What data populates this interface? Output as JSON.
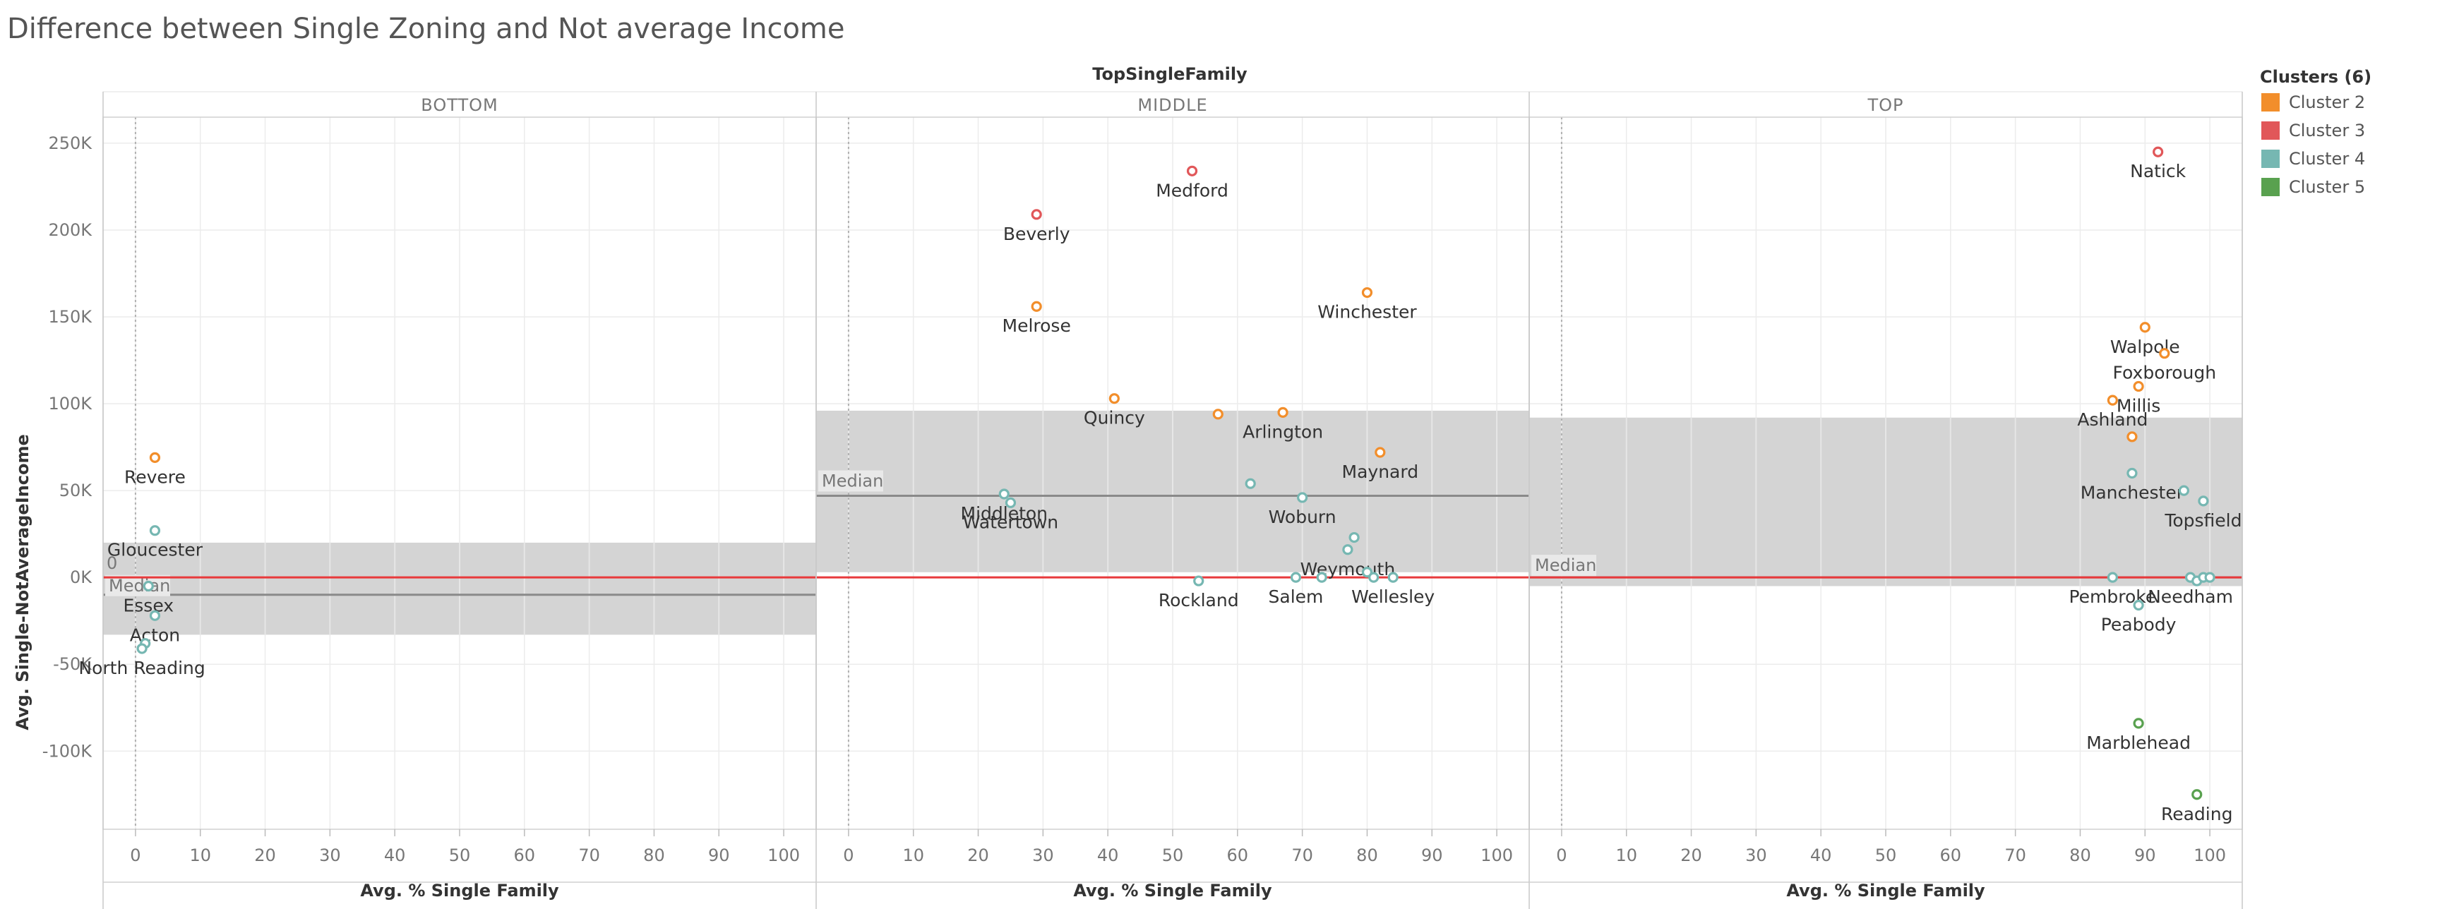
{
  "chart_data": {
    "type": "scatter",
    "title": "Difference between Single Zoning and Not average Income",
    "column_header": "TopSingleFamily",
    "xlabel": "Avg. % Single Family",
    "ylabel": "Avg. Single-NotAverageIncome",
    "xlim": [
      -5,
      105
    ],
    "ylim": [
      -145000,
      265000
    ],
    "x_ticks": [
      0,
      10,
      20,
      30,
      40,
      50,
      60,
      70,
      80,
      90,
      100
    ],
    "y_ticks": [
      250000,
      200000,
      150000,
      100000,
      50000,
      0,
      -50000,
      -100000
    ],
    "y_tick_labels": [
      "250K",
      "200K",
      "150K",
      "100K",
      "50K",
      "0K",
      "-50K",
      "-100K"
    ],
    "grid": true,
    "legend": {
      "title": "Clusters (6)",
      "position": "right",
      "items": [
        {
          "name": "Cluster 2",
          "color": "#F28E2B"
        },
        {
          "name": "Cluster 3",
          "color": "#E15759"
        },
        {
          "name": "Cluster 4",
          "color": "#76B7B2"
        },
        {
          "name": "Cluster 5",
          "color": "#59A14F"
        }
      ]
    },
    "reference_line_color": "#E8393B",
    "panels": [
      {
        "name": "BOTTOM",
        "median": -10000,
        "median_label": "Median",
        "band": [
          -33000,
          20000
        ],
        "zero_label": "0",
        "points": [
          {
            "label": "Revere",
            "x": 3,
            "y": 69000,
            "cluster": "Cluster 2"
          },
          {
            "label": "Gloucester",
            "x": 3,
            "y": 27000,
            "cluster": "Cluster 4"
          },
          {
            "label": "Essex",
            "x": 2,
            "y": -5000,
            "cluster": "Cluster 4"
          },
          {
            "label": "Acton",
            "x": 3,
            "y": -22000,
            "cluster": "Cluster 4"
          },
          {
            "label": "",
            "x": 1.5,
            "y": -38000,
            "cluster": "Cluster 4"
          },
          {
            "label": "North Reading",
            "x": 1,
            "y": -41000,
            "cluster": "Cluster 4"
          }
        ]
      },
      {
        "name": "MIDDLE",
        "median": 47000,
        "median_label": "Median",
        "band": [
          3000,
          96000
        ],
        "points": [
          {
            "label": "Medford",
            "x": 53,
            "y": 234000,
            "cluster": "Cluster 3"
          },
          {
            "label": "Beverly",
            "x": 29,
            "y": 209000,
            "cluster": "Cluster 3"
          },
          {
            "label": "Melrose",
            "x": 29,
            "y": 156000,
            "cluster": "Cluster 2"
          },
          {
            "label": "Winchester",
            "x": 80,
            "y": 164000,
            "cluster": "Cluster 2"
          },
          {
            "label": "Quincy",
            "x": 41,
            "y": 103000,
            "cluster": "Cluster 2"
          },
          {
            "label": "",
            "x": 57,
            "y": 94000,
            "cluster": "Cluster 2"
          },
          {
            "label": "Arlington",
            "x": 67,
            "y": 95000,
            "cluster": "Cluster 2"
          },
          {
            "label": "Maynard",
            "x": 82,
            "y": 72000,
            "cluster": "Cluster 2"
          },
          {
            "label": "Middleton",
            "x": 24,
            "y": 48000,
            "cluster": "Cluster 4"
          },
          {
            "label": "Watertown",
            "x": 25,
            "y": 43000,
            "cluster": "Cluster 4"
          },
          {
            "label": "",
            "x": 62,
            "y": 54000,
            "cluster": "Cluster 4"
          },
          {
            "label": "Woburn",
            "x": 70,
            "y": 46000,
            "cluster": "Cluster 4"
          },
          {
            "label": "",
            "x": 78,
            "y": 23000,
            "cluster": "Cluster 4"
          },
          {
            "label": "Weymouth",
            "x": 77,
            "y": 16000,
            "cluster": "Cluster 4"
          },
          {
            "label": "Rockland",
            "x": 54,
            "y": -2000,
            "cluster": "Cluster 4"
          },
          {
            "label": "Salem",
            "x": 69,
            "y": 0,
            "cluster": "Cluster 4"
          },
          {
            "label": "",
            "x": 73,
            "y": 0,
            "cluster": "Cluster 4"
          },
          {
            "label": "",
            "x": 80,
            "y": 3000,
            "cluster": "Cluster 4"
          },
          {
            "label": "",
            "x": 81,
            "y": 0,
            "cluster": "Cluster 4"
          },
          {
            "label": "Wellesley",
            "x": 84,
            "y": 0,
            "cluster": "Cluster 4"
          }
        ]
      },
      {
        "name": "TOP",
        "median": 0,
        "median_label": "Median",
        "band": [
          -5000,
          92000
        ],
        "points": [
          {
            "label": "Natick",
            "x": 92,
            "y": 245000,
            "cluster": "Cluster 3"
          },
          {
            "label": "Walpole",
            "x": 90,
            "y": 144000,
            "cluster": "Cluster 2"
          },
          {
            "label": "Foxborough",
            "x": 93,
            "y": 129000,
            "cluster": "Cluster 2"
          },
          {
            "label": "Millis",
            "x": 89,
            "y": 110000,
            "cluster": "Cluster 2"
          },
          {
            "label": "Ashland",
            "x": 85,
            "y": 102000,
            "cluster": "Cluster 2"
          },
          {
            "label": "",
            "x": 88,
            "y": 81000,
            "cluster": "Cluster 2"
          },
          {
            "label": "Manchester",
            "x": 88,
            "y": 60000,
            "cluster": "Cluster 4"
          },
          {
            "label": "",
            "x": 96,
            "y": 50000,
            "cluster": "Cluster 4"
          },
          {
            "label": "Topsfield",
            "x": 99,
            "y": 44000,
            "cluster": "Cluster 4"
          },
          {
            "label": "Pembroke",
            "x": 85,
            "y": 0,
            "cluster": "Cluster 4"
          },
          {
            "label": "Needham",
            "x": 97,
            "y": 0,
            "cluster": "Cluster 4"
          },
          {
            "label": "",
            "x": 98,
            "y": -2000,
            "cluster": "Cluster 4"
          },
          {
            "label": "",
            "x": 99,
            "y": 0,
            "cluster": "Cluster 4"
          },
          {
            "label": "",
            "x": 100,
            "y": 0,
            "cluster": "Cluster 4"
          },
          {
            "label": "Peabody",
            "x": 89,
            "y": -16000,
            "cluster": "Cluster 4"
          },
          {
            "label": "Marblehead",
            "x": 89,
            "y": -84000,
            "cluster": "Cluster 5"
          },
          {
            "label": "Reading",
            "x": 98,
            "y": -125000,
            "cluster": "Cluster 5"
          }
        ]
      }
    ]
  }
}
